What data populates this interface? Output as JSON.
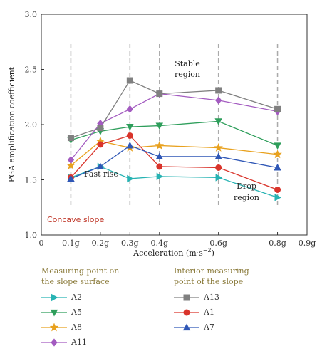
{
  "chart_data": {
    "type": "line",
    "x": [
      "0.1g",
      "0.2g",
      "0.3g",
      "0.4g",
      "0.6g",
      "0.8g"
    ],
    "x_values": [
      0.1,
      0.2,
      0.3,
      0.4,
      0.6,
      0.8
    ],
    "ylabel": "PGA amplification coefficient",
    "xlabel_main": "Acceleration (m·s",
    "xlabel_sup": "−2",
    "xlabel_tail": ")",
    "xlim": [
      0,
      0.9
    ],
    "ylim": [
      1.0,
      3.0
    ],
    "xticks": [
      {
        "v": 0,
        "label": "0"
      },
      {
        "v": 0.1,
        "label": "0.1g"
      },
      {
        "v": 0.2,
        "label": "0.2g"
      },
      {
        "v": 0.3,
        "label": "0.3g"
      },
      {
        "v": 0.4,
        "label": "0.4g"
      },
      {
        "v": 0.6,
        "label": "0.6g"
      },
      {
        "v": 0.8,
        "label": "0.8g"
      },
      {
        "v": 0.9,
        "label": "0.9g"
      }
    ],
    "yticks": [
      "1.0",
      "1.5",
      "2.0",
      "2.5",
      "3.0"
    ],
    "series": [
      {
        "name": "A2",
        "marker": "triangle-right",
        "color": "#27b3b3",
        "values": [
          1.52,
          1.62,
          1.51,
          1.53,
          1.52,
          1.34
        ]
      },
      {
        "name": "A5",
        "marker": "triangle-down",
        "color": "#2e9e5b",
        "values": [
          1.86,
          1.94,
          1.98,
          1.99,
          2.03,
          1.81
        ]
      },
      {
        "name": "A8",
        "marker": "star",
        "color": "#e8a11e",
        "values": [
          1.63,
          1.85,
          1.79,
          1.81,
          1.79,
          1.73
        ]
      },
      {
        "name": "A11",
        "marker": "diamond",
        "color": "#a35bc0",
        "values": [
          1.68,
          2.01,
          2.14,
          2.28,
          2.22,
          2.12
        ]
      },
      {
        "name": "A13",
        "marker": "square",
        "color": "#808080",
        "values": [
          1.88,
          1.97,
          2.4,
          2.28,
          2.31,
          2.14
        ]
      },
      {
        "name": "A1",
        "marker": "circle",
        "color": "#d9342b",
        "values": [
          1.52,
          1.82,
          1.9,
          1.62,
          1.61,
          1.41
        ]
      },
      {
        "name": "A7",
        "marker": "triangle-up",
        "color": "#2f57b6",
        "values": [
          1.51,
          1.62,
          1.81,
          1.71,
          1.71,
          1.61
        ]
      }
    ],
    "annotations": {
      "fast_rise": "Fast rise",
      "stable_1": "Stable",
      "stable_2": "region",
      "drop_1": "Drop",
      "drop_2": "region",
      "slope_label": "Concave slope"
    },
    "dashed_x": [
      0.1,
      0.3,
      0.4,
      0.6,
      0.8
    ],
    "colors": {
      "dashed": "#aaaaaa",
      "slope_label": "#c0392b",
      "legend_head": "#8a7a3a"
    }
  },
  "legend": {
    "surface_heading_1": "Measuring point on",
    "surface_heading_2": "the slope surface",
    "interior_heading_1": "Interior measuring",
    "interior_heading_2": "point of the slope",
    "surface_items": [
      "A2",
      "A5",
      "A8",
      "A11"
    ],
    "interior_items": [
      "A13",
      "A1",
      "A7"
    ]
  }
}
